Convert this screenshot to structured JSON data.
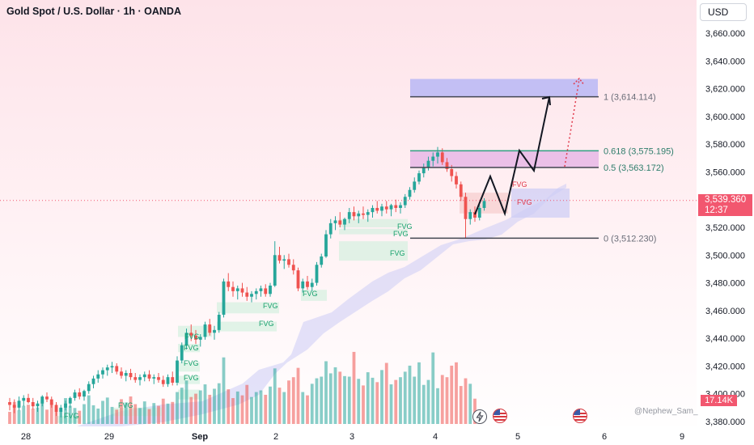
{
  "header": {
    "title": "Gold Spot / U.S. Dollar · 1h · OANDA",
    "currency_button": "USD"
  },
  "last_price": {
    "price": "3,539.360",
    "countdown": "12:37"
  },
  "volume_label": "17.14K",
  "watermark": "@Nephew_Sam_",
  "colors": {
    "up": "#26a69a",
    "down": "#ef5350",
    "target_zone": "#b4b4f5",
    "fib_zone": "#e6b4e6",
    "cloud": "#ccccf5"
  },
  "icons": [
    "flash-icon",
    "us-flag-icon",
    "us-flag-icon",
    "us-flag-icon"
  ],
  "chart_data": {
    "type": "candlestick",
    "symbol": "XAUUSD",
    "interval": "1h",
    "ylim": [
      3375,
      3672
    ],
    "y_ticks": [
      "3,380.000",
      "3,400.000",
      "3,420.000",
      "3,440.000",
      "3,460.000",
      "3,480.000",
      "3,500.000",
      "3,520.000",
      "3,540.000",
      "3,560.000",
      "3,580.000",
      "3,600.000",
      "3,620.000",
      "3,640.000",
      "3,660.000"
    ],
    "x_ticks": [
      "28",
      "29",
      "Sep",
      "2",
      "3",
      "4",
      "5",
      "6",
      "9"
    ],
    "fib_levels": [
      {
        "label": "1 (3,614.114)",
        "price": 3614.114
      },
      {
        "label": "0.618 (3,575.195)",
        "price": 3575.195
      },
      {
        "label": "0.5 (3,563.172)",
        "price": 3563.172
      },
      {
        "label": "0 (3,512.230)",
        "price": 3512.23
      }
    ],
    "zones": [
      {
        "kind": "target",
        "from": 3614.1,
        "to": 3627
      },
      {
        "kind": "fib",
        "from": 3563.2,
        "to": 3575.2
      }
    ],
    "fvg_labels": [
      "FVG",
      "FVG",
      "FVG",
      "FVG",
      "FVG",
      "FVG",
      "FVG",
      "FVG",
      "FVG",
      "FVG",
      "FVG",
      "FVG",
      "FVG"
    ],
    "candles_ohlc": [
      [
        3394,
        3397,
        3388,
        3392
      ],
      [
        3392,
        3396,
        3386,
        3390
      ],
      [
        3390,
        3398,
        3388,
        3395
      ],
      [
        3395,
        3399,
        3391,
        3397
      ],
      [
        3397,
        3400,
        3393,
        3394
      ],
      [
        3394,
        3397,
        3389,
        3391
      ],
      [
        3391,
        3395,
        3387,
        3393
      ],
      [
        3393,
        3399,
        3391,
        3398
      ],
      [
        3398,
        3401,
        3394,
        3396
      ],
      [
        3396,
        3398,
        3390,
        3392
      ],
      [
        3392,
        3394,
        3384,
        3387
      ],
      [
        3387,
        3392,
        3383,
        3390
      ],
      [
        3390,
        3395,
        3388,
        3393
      ],
      [
        3393,
        3398,
        3390,
        3397
      ],
      [
        3397,
        3403,
        3395,
        3401
      ],
      [
        3401,
        3404,
        3396,
        3398
      ],
      [
        3398,
        3403,
        3395,
        3402
      ],
      [
        3402,
        3409,
        3400,
        3407
      ],
      [
        3407,
        3413,
        3404,
        3411
      ],
      [
        3411,
        3417,
        3408,
        3414
      ],
      [
        3414,
        3419,
        3411,
        3417
      ],
      [
        3417,
        3421,
        3413,
        3419
      ],
      [
        3419,
        3423,
        3415,
        3420
      ],
      [
        3420,
        3422,
        3414,
        3416
      ],
      [
        3416,
        3419,
        3411,
        3413
      ],
      [
        3413,
        3417,
        3409,
        3415
      ],
      [
        3415,
        3418,
        3410,
        3412
      ],
      [
        3412,
        3415,
        3408,
        3410
      ],
      [
        3410,
        3414,
        3406,
        3412
      ],
      [
        3412,
        3416,
        3409,
        3414
      ],
      [
        3414,
        3417,
        3409,
        3411
      ],
      [
        3411,
        3414,
        3407,
        3412
      ],
      [
        3412,
        3415,
        3408,
        3410
      ],
      [
        3410,
        3413,
        3405,
        3407
      ],
      [
        3407,
        3414,
        3405,
        3412
      ],
      [
        3412,
        3416,
        3406,
        3408
      ],
      [
        3408,
        3427,
        3406,
        3424
      ],
      [
        3424,
        3437,
        3422,
        3435
      ],
      [
        3435,
        3447,
        3432,
        3444
      ],
      [
        3444,
        3450,
        3438,
        3442
      ],
      [
        3442,
        3446,
        3436,
        3439
      ],
      [
        3439,
        3443,
        3434,
        3441
      ],
      [
        3441,
        3452,
        3439,
        3450
      ],
      [
        3450,
        3454,
        3442,
        3444
      ],
      [
        3444,
        3449,
        3439,
        3446
      ],
      [
        3446,
        3459,
        3444,
        3457
      ],
      [
        3457,
        3483,
        3455,
        3481
      ],
      [
        3481,
        3487,
        3474,
        3477
      ],
      [
        3477,
        3481,
        3470,
        3474
      ],
      [
        3474,
        3478,
        3468,
        3476
      ],
      [
        3476,
        3480,
        3470,
        3473
      ],
      [
        3473,
        3477,
        3467,
        3470
      ],
      [
        3470,
        3474,
        3466,
        3472
      ],
      [
        3472,
        3476,
        3468,
        3474
      ],
      [
        3474,
        3478,
        3470,
        3476
      ],
      [
        3476,
        3479,
        3470,
        3472
      ],
      [
        3472,
        3480,
        3470,
        3478
      ],
      [
        3478,
        3510,
        3477,
        3500
      ],
      [
        3500,
        3506,
        3494,
        3496
      ],
      [
        3496,
        3500,
        3490,
        3497
      ],
      [
        3497,
        3501,
        3491,
        3493
      ],
      [
        3493,
        3497,
        3486,
        3489
      ],
      [
        3489,
        3491,
        3474,
        3476
      ],
      [
        3476,
        3483,
        3473,
        3481
      ],
      [
        3481,
        3485,
        3475,
        3477
      ],
      [
        3477,
        3483,
        3474,
        3480
      ],
      [
        3480,
        3495,
        3478,
        3493
      ],
      [
        3493,
        3501,
        3491,
        3499
      ],
      [
        3499,
        3518,
        3498,
        3515
      ],
      [
        3515,
        3526,
        3512,
        3523
      ],
      [
        3523,
        3528,
        3518,
        3525
      ],
      [
        3525,
        3531,
        3520,
        3522
      ],
      [
        3522,
        3527,
        3518,
        3526
      ],
      [
        3526,
        3534,
        3523,
        3531
      ],
      [
        3531,
        3535,
        3525,
        3528
      ],
      [
        3528,
        3532,
        3523,
        3530
      ],
      [
        3530,
        3535,
        3526,
        3529
      ],
      [
        3529,
        3533,
        3524,
        3531
      ],
      [
        3531,
        3536,
        3527,
        3534
      ],
      [
        3534,
        3539,
        3530,
        3532
      ],
      [
        3532,
        3537,
        3528,
        3535
      ],
      [
        3535,
        3539,
        3530,
        3533
      ],
      [
        3533,
        3537,
        3528,
        3536
      ],
      [
        3536,
        3540,
        3531,
        3534
      ],
      [
        3534,
        3538,
        3530,
        3536
      ],
      [
        3536,
        3544,
        3534,
        3542
      ],
      [
        3542,
        3549,
        3540,
        3547
      ],
      [
        3547,
        3556,
        3545,
        3553
      ],
      [
        3553,
        3561,
        3551,
        3559
      ],
      [
        3559,
        3566,
        3556,
        3563
      ],
      [
        3563,
        3571,
        3561,
        3568
      ],
      [
        3568,
        3574,
        3564,
        3571
      ],
      [
        3571,
        3578,
        3566,
        3574
      ],
      [
        3574,
        3577,
        3565,
        3567
      ],
      [
        3567,
        3570,
        3560,
        3562
      ],
      [
        3562,
        3565,
        3553,
        3557
      ],
      [
        3557,
        3560,
        3548,
        3551
      ],
      [
        3551,
        3553,
        3539,
        3542
      ],
      [
        3542,
        3545,
        3512,
        3526
      ],
      [
        3526,
        3533,
        3522,
        3531
      ],
      [
        3531,
        3535,
        3524,
        3527
      ],
      [
        3527,
        3536,
        3525,
        3534
      ],
      [
        3534,
        3541,
        3532,
        3539
      ]
    ],
    "volume": [
      22,
      40,
      25,
      33,
      35,
      28,
      30,
      44,
      26,
      38,
      31,
      27,
      47,
      33,
      29,
      24,
      36,
      52,
      34,
      28,
      42,
      48,
      31,
      26,
      45,
      39,
      50,
      36,
      29,
      41,
      27,
      38,
      33,
      46,
      37,
      40,
      58,
      66,
      79,
      49,
      55,
      61,
      72,
      53,
      64,
      74,
      121,
      63,
      47,
      59,
      52,
      71,
      49,
      58,
      61,
      53,
      68,
      101,
      66,
      58,
      79,
      85,
      102,
      58,
      52,
      73,
      83,
      86,
      114,
      92,
      103,
      95,
      87,
      86,
      131,
      82,
      70,
      94,
      84,
      76,
      98,
      111,
      72,
      80,
      85,
      95,
      106,
      86,
      112,
      71,
      80,
      130,
      65,
      89,
      85,
      106,
      112,
      69,
      83,
      73,
      46
    ]
  }
}
